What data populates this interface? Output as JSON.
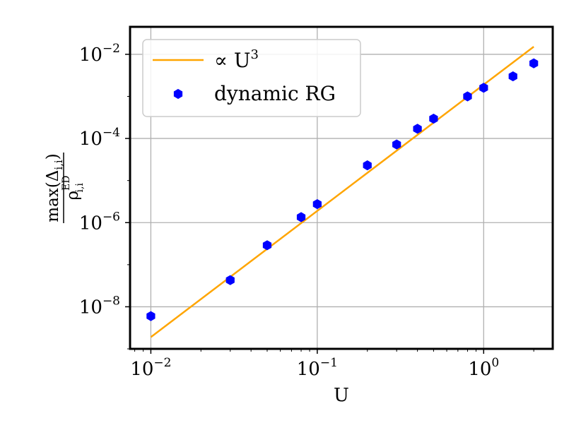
{
  "chart_data": {
    "type": "scatter",
    "xlabel": "U",
    "ylabel": {
      "numerator": "max(Δ",
      "numerator_sub": "i,i",
      "numerator_close": ")",
      "denominator": "ρ",
      "denominator_sub": "i,i",
      "denominator_sup": "ED"
    },
    "x_scale": "log",
    "y_scale": "log",
    "xlim": [
      0.0075,
      2.6
    ],
    "ylim": [
      1e-09,
      0.045
    ],
    "grid": true,
    "x_ticks": [
      {
        "value": 0.01,
        "base": "10",
        "exp": "−2"
      },
      {
        "value": 0.1,
        "base": "10",
        "exp": "−1"
      },
      {
        "value": 1,
        "base": "10",
        "exp": "0"
      }
    ],
    "y_ticks": [
      {
        "value": 1e-08,
        "base": "10",
        "exp": "−8"
      },
      {
        "value": 1e-06,
        "base": "10",
        "exp": "−6"
      },
      {
        "value": 0.0001,
        "base": "10",
        "exp": "−4"
      },
      {
        "value": 0.01,
        "base": "10",
        "exp": "−2"
      }
    ],
    "legend_position": "top-left",
    "series": [
      {
        "name": "∝ U",
        "name_sup": "3",
        "kind": "line",
        "color": "#FFA500",
        "x": [
          0.01,
          2.0
        ],
        "y": [
          1.9e-09,
          0.0152
        ]
      },
      {
        "name": "dynamic RG",
        "kind": "marker",
        "marker": "hexagon",
        "color": "#0000FF",
        "x": [
          0.01,
          0.03,
          0.05,
          0.08,
          0.1,
          0.2,
          0.3,
          0.4,
          0.5,
          0.8,
          1.0,
          1.5,
          2.0
        ],
        "y": [
          6e-09,
          4.3e-08,
          2.9e-07,
          1.35e-06,
          2.75e-06,
          2.3e-05,
          7.2e-05,
          0.00017,
          0.000295,
          0.001,
          0.0016,
          0.003,
          0.0061
        ]
      }
    ]
  }
}
